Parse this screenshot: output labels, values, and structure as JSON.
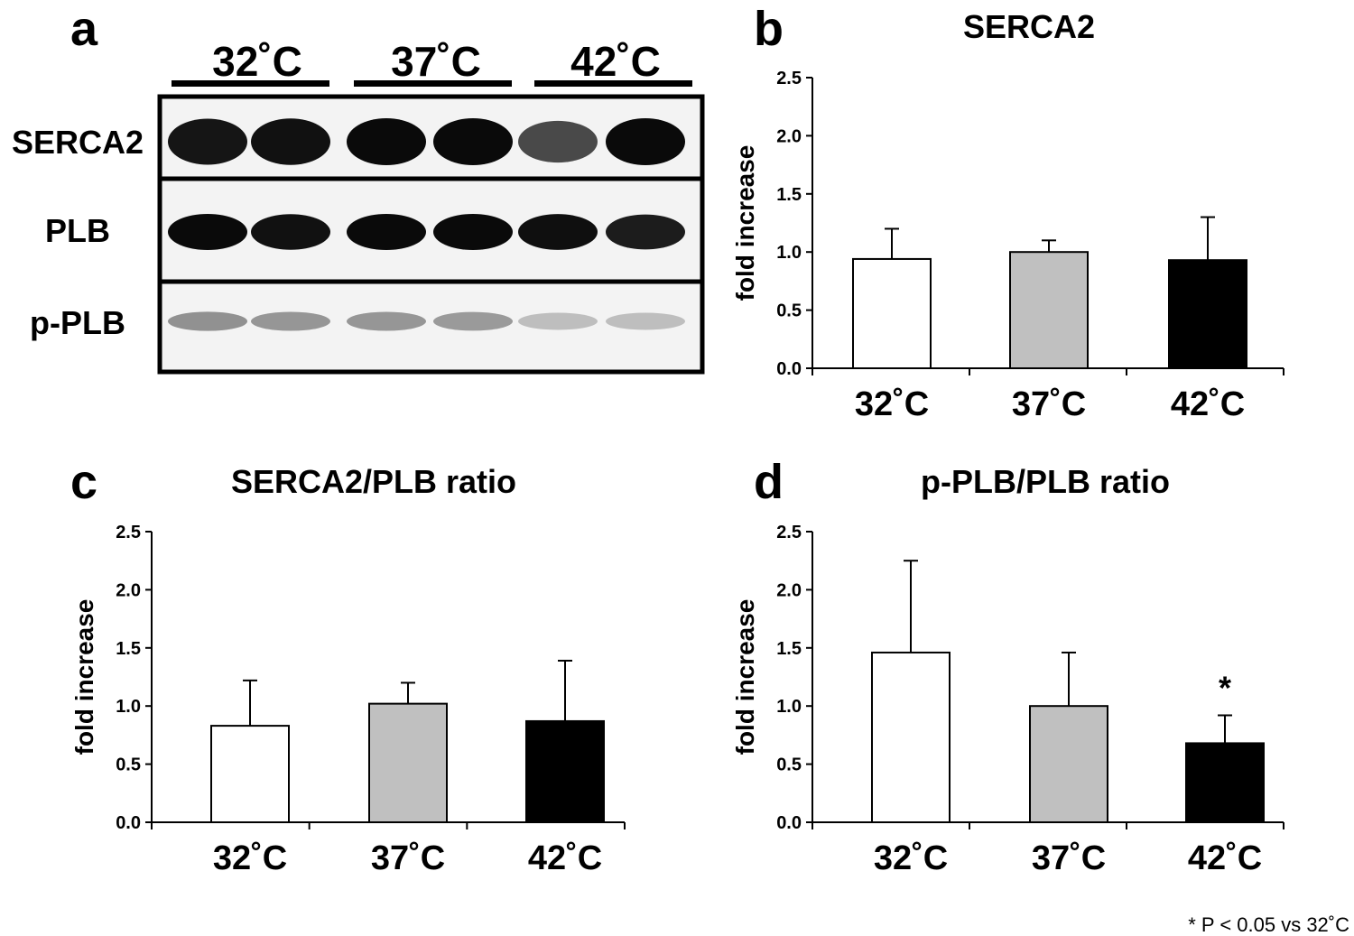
{
  "panel_labels": {
    "a": "a",
    "b": "b",
    "c": "c",
    "d": "d"
  },
  "blot": {
    "group_labels": [
      "32˚C",
      "37˚C",
      "42˚C"
    ],
    "row_labels": [
      "SERCA2",
      "PLB",
      "p-PLB"
    ],
    "band_intensity": {
      "SERCA2": [
        0.95,
        0.97,
        1.0,
        1.0,
        0.72,
        1.0
      ],
      "PLB": [
        1.0,
        0.97,
        1.0,
        1.0,
        0.98,
        0.92
      ],
      "p-PLB": [
        0.4,
        0.38,
        0.38,
        0.36,
        0.2,
        0.2
      ]
    }
  },
  "footnote": "*  P < 0.05 vs 32˚C",
  "colors": {
    "32C": "#ffffff",
    "37C": "#c0c0c0",
    "42C": "#000000",
    "axis": "#000000"
  },
  "chart_data": [
    {
      "panel": "b",
      "type": "bar",
      "title": "SERCA2",
      "ylabel": "fold increase",
      "ylim": [
        0,
        2.5
      ],
      "yticks": [
        "0.0",
        "0.5",
        "1.0",
        "1.5",
        "2.0",
        "2.5"
      ],
      "categories": [
        "32˚C",
        "37˚C",
        "42˚C"
      ],
      "values": [
        0.94,
        1.0,
        0.93
      ],
      "error": [
        0.26,
        0.1,
        0.37
      ],
      "annotations": [
        "",
        "",
        ""
      ]
    },
    {
      "panel": "c",
      "type": "bar",
      "title": "SERCA2/PLB ratio",
      "ylabel": "fold increase",
      "ylim": [
        0,
        2.5
      ],
      "yticks": [
        "0.0",
        "0.5",
        "1.0",
        "1.5",
        "2.0",
        "2.5"
      ],
      "categories": [
        "32˚C",
        "37˚C",
        "42˚C"
      ],
      "values": [
        0.83,
        1.02,
        0.87
      ],
      "error": [
        0.39,
        0.18,
        0.52
      ],
      "annotations": [
        "",
        "",
        ""
      ]
    },
    {
      "panel": "d",
      "type": "bar",
      "title": "p-PLB/PLB ratio",
      "ylabel": "fold increase",
      "ylim": [
        0,
        2.5
      ],
      "yticks": [
        "0.0",
        "0.5",
        "1.0",
        "1.5",
        "2.0",
        "2.5"
      ],
      "categories": [
        "32˚C",
        "37˚C",
        "42˚C"
      ],
      "values": [
        1.46,
        1.0,
        0.68
      ],
      "error": [
        0.79,
        0.46,
        0.24
      ],
      "annotations": [
        "",
        "",
        "*"
      ]
    }
  ]
}
